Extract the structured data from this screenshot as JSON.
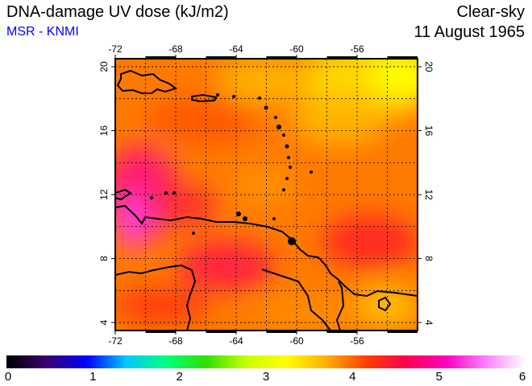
{
  "header": {
    "title": "DNA-damage UV dose (kJ/m2)",
    "source": "MSR - KNMI",
    "sky": "Clear-sky",
    "date": "11 August 1965"
  },
  "map": {
    "lon_ticks": [
      "-72",
      "-68",
      "-64",
      "-60",
      "-56"
    ],
    "lat_ticks": [
      "20",
      "16",
      "12",
      "8",
      "4"
    ],
    "lon_range": [
      -72,
      -52
    ],
    "lat_range": [
      3.5,
      20.5
    ]
  },
  "colorbar": {
    "labels": [
      "0",
      "1",
      "2",
      "3",
      "4",
      "5",
      "6"
    ],
    "range": [
      0,
      6
    ],
    "stops": [
      "#000000",
      "#3a0070",
      "#0000ff",
      "#00c8ff",
      "#00ff80",
      "#30e000",
      "#c8ff00",
      "#ffff00",
      "#ffb000",
      "#ff4000",
      "#ff0050",
      "#ff00c0",
      "#ff80ff",
      "#ffffff"
    ]
  }
}
